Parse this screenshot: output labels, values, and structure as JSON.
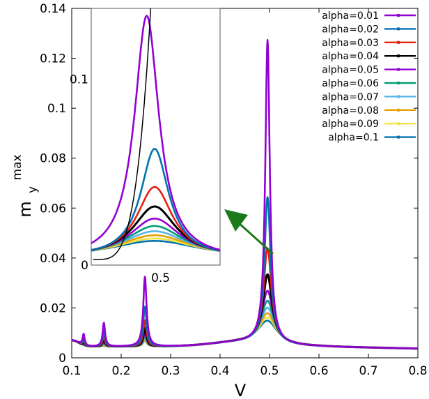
{
  "chart_data": {
    "type": "line",
    "xlabel": "V",
    "ylabel_main": "m",
    "ylabel_sub": "y",
    "ylabel_sup": "max",
    "xlim": [
      0.1,
      0.8
    ],
    "ylim": [
      0,
      0.14
    ],
    "xticks": [
      0.1,
      0.2,
      0.3,
      0.4,
      0.5,
      0.6,
      0.7,
      0.8
    ],
    "yticks": [
      0,
      0.02,
      0.04,
      0.06,
      0.08,
      0.1,
      0.12,
      0.14
    ],
    "xtick_labels": [
      "0.1",
      "0.2",
      "0.3",
      "0.4",
      "0.5",
      "0.6",
      "0.7",
      "0.8"
    ],
    "ytick_labels": [
      "0",
      "0.02",
      "0.04",
      "0.06",
      "0.08",
      "0.1",
      "0.12",
      "0.14"
    ],
    "legend_position": "top-right",
    "series": [
      {
        "name": "alpha=0.01",
        "color": "#9400d3",
        "peak": 0.1255,
        "width": 0.0055,
        "sub": [
          0.0085,
          0.0135,
          0.032
        ]
      },
      {
        "name": "alpha=0.02",
        "color": "#0072b2",
        "peak": 0.0625,
        "width": 0.0075,
        "sub": [
          0.0065,
          0.01,
          0.02
        ]
      },
      {
        "name": "alpha=0.03",
        "color": "#e51e10",
        "peak": 0.042,
        "width": 0.0095,
        "sub": [
          0.0055,
          0.008,
          0.0145
        ]
      },
      {
        "name": "alpha=0.04",
        "color": "#000000",
        "peak": 0.0315,
        "width": 0.0115,
        "sub": [
          0.005,
          0.007,
          0.0115
        ]
      },
      {
        "name": "alpha=0.05",
        "color": "#9400d3",
        "peak": 0.025,
        "width": 0.0135,
        "sub": [
          0.0045,
          0.0062,
          0.0095
        ]
      },
      {
        "name": "alpha=0.06",
        "color": "#009e73",
        "peak": 0.021,
        "width": 0.0155,
        "sub": [
          0.0042,
          0.0056,
          0.0085
        ]
      },
      {
        "name": "alpha=0.07",
        "color": "#56b4e9",
        "peak": 0.0182,
        "width": 0.0175,
        "sub": [
          0.004,
          0.0052,
          0.0078
        ]
      },
      {
        "name": "alpha=0.08",
        "color": "#e69f00",
        "peak": 0.016,
        "width": 0.0195,
        "sub": [
          0.0038,
          0.0048,
          0.0072
        ]
      },
      {
        "name": "alpha=0.09",
        "color": "#f0e442",
        "peak": 0.0143,
        "width": 0.0215,
        "sub": [
          0.0036,
          0.0045,
          0.0068
        ]
      },
      {
        "name": "alpha=0.1",
        "color": "#0072b2",
        "peak": 0.013,
        "width": 0.0235,
        "sub": [
          0.0035,
          0.0043,
          0.0065
        ]
      }
    ],
    "inset": {
      "ytick_labels": [
        "0",
        "0.1"
      ],
      "ytick_values": [
        0,
        0.1
      ],
      "xtick_labels": [
        "0.5"
      ],
      "xtick_values": [
        0.5
      ],
      "ylim": [
        0,
        0.138
      ],
      "xlim": [
        0.43,
        0.56
      ]
    },
    "annotation": {
      "type": "arrow",
      "color": "#1a7a1a",
      "from": [
        0.5,
        0.04
      ],
      "to": [
        0.42,
        0.052
      ]
    }
  }
}
